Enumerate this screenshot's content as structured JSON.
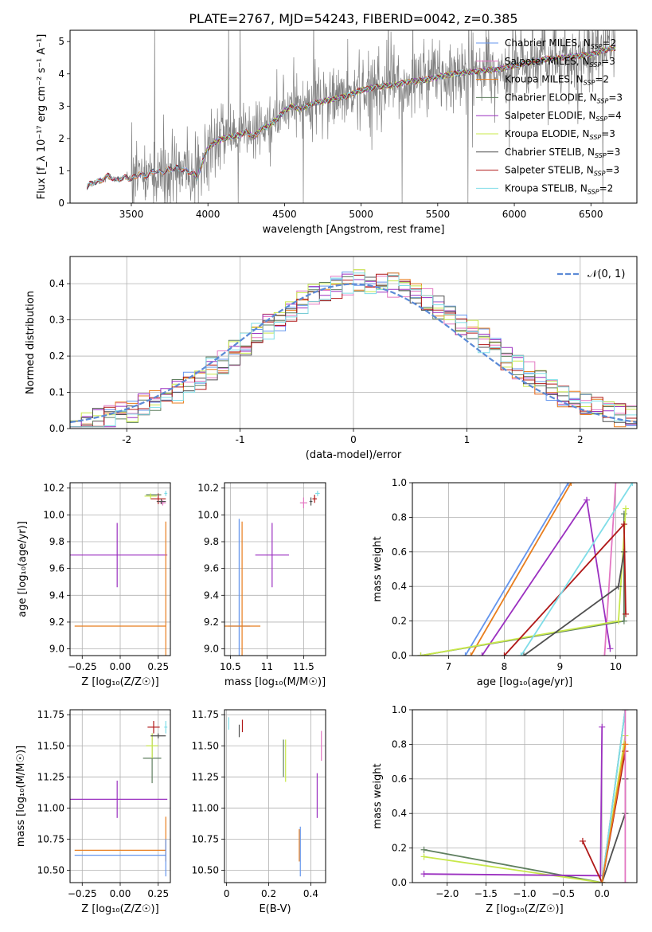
{
  "title": "PLATE=2767, MJD=54243, FIBERID=0042, z=0.385",
  "colors": {
    "Chabrier MILES": "#6495ed",
    "Salpeter MILES": "#e377c2",
    "Kroupa MILES": "#e87e1e",
    "Chabrier ELODIE": "#5f7f5f",
    "Salpeter ELODIE": "#9b30c0",
    "Kroupa ELODIE": "#c8e84a",
    "Chabrier STELIB": "#505050",
    "Salpeter STELIB": "#b01818",
    "Kroupa STELIB": "#7fdde8",
    "data": "#808080",
    "normal_curve": "#5b8ad6"
  },
  "chart_data": [
    {
      "id": "spectrum",
      "type": "line",
      "xlabel": "wavelength [Angstrom, rest frame]",
      "ylabel": "Flux [f_λ 10⁻¹⁷ erg cm⁻² s⁻¹ A⁻¹]",
      "xlim": [
        3100,
        6800
      ],
      "ylim": [
        0,
        5.35
      ],
      "xticks": [
        3500,
        4000,
        4500,
        5000,
        5500,
        6000,
        6500
      ],
      "yticks": [
        0,
        1,
        2,
        3,
        4,
        5
      ],
      "legend_position": "top-right",
      "legend": [
        {
          "name": "Chabrier MILES",
          "nssp": "2"
        },
        {
          "name": "Salpeter MILES",
          "nssp": "3"
        },
        {
          "name": "Kroupa MILES",
          "nssp": "2"
        },
        {
          "name": "Chabrier ELODIE",
          "nssp": "3"
        },
        {
          "name": "Salpeter ELODIE",
          "nssp": "4"
        },
        {
          "name": "Kroupa ELODIE",
          "nssp": "3"
        },
        {
          "name": "Chabrier STELIB",
          "nssp": "3"
        },
        {
          "name": "Salpeter STELIB",
          "nssp": "3"
        },
        {
          "name": "Kroupa STELIB",
          "nssp": "2"
        }
      ],
      "model_shape": {
        "x": [
          3210,
          3230,
          3300,
          3350,
          3400,
          3450,
          3500,
          3550,
          3600,
          3650,
          3700,
          3750,
          3800,
          3850,
          3900,
          3930,
          3960,
          4000,
          4050,
          4100,
          4150,
          4200,
          4250,
          4300,
          4350,
          4400,
          4450,
          4500,
          4550,
          4600,
          4700,
          4800,
          4900,
          5000,
          5100,
          5200,
          5300,
          5400,
          5500,
          5600,
          5700,
          5800,
          5900,
          6000,
          6100,
          6200,
          6300,
          6400,
          6500,
          6600,
          6650
        ],
        "y": [
          0.5,
          0.6,
          0.7,
          0.85,
          0.7,
          0.8,
          0.75,
          0.9,
          0.85,
          1.0,
          0.95,
          1.05,
          1.1,
          1.0,
          0.95,
          0.8,
          1.2,
          1.7,
          1.9,
          2.0,
          2.05,
          2.1,
          2.2,
          2.05,
          2.3,
          2.4,
          2.6,
          2.85,
          3.0,
          2.9,
          3.1,
          3.2,
          3.3,
          3.5,
          3.6,
          3.65,
          3.75,
          3.8,
          3.9,
          4.0,
          4.05,
          4.1,
          4.15,
          4.25,
          4.35,
          4.45,
          4.5,
          4.55,
          4.6,
          4.75,
          4.8
        ]
      }
    },
    {
      "id": "residuals",
      "type": "bar",
      "xlabel": "(data-model)/error",
      "ylabel": "Normed distribution",
      "xlim": [
        -2.5,
        2.5
      ],
      "ylim": [
        0,
        0.475
      ],
      "xticks": [
        -2,
        -1,
        0,
        1,
        2
      ],
      "yticks": [
        0.0,
        0.1,
        0.2,
        0.3,
        0.4
      ],
      "grid": true,
      "legend_position": "top-right",
      "legend_label": "𝒩(0, 1)",
      "bin_width": 0.1
    },
    {
      "id": "age_vs_Z",
      "type": "scatter",
      "xlabel": "Z [log₁₀(Z/Z☉)]",
      "ylabel": "age  [log₁₀(age/yr)]",
      "xlim": [
        -0.33,
        0.33
      ],
      "ylim": [
        8.95,
        10.24
      ],
      "xticks": [
        -0.25,
        0.0,
        0.25
      ],
      "xtick_labels": [
        "−0.25",
        "0.00",
        "0.25"
      ],
      "yticks": [
        9.0,
        9.2,
        9.4,
        9.6,
        9.8,
        10.0,
        10.2
      ],
      "grid": true,
      "points": [
        {
          "s": "Salpeter ELODIE",
          "x": -0.02,
          "y": 9.7,
          "xe": 0.33,
          "ye": 0.24
        },
        {
          "s": "Kroupa MILES",
          "x": 0.0,
          "y": 9.17,
          "xe": 0.3,
          "ye": 0.0
        },
        {
          "s": "Kroupa MILES",
          "x": 0.3,
          "y": 9.45,
          "xe": 0.0,
          "ye": 0.5
        },
        {
          "s": "Salpeter STELIB",
          "x": 0.25,
          "y": 10.12,
          "xe": 0.05,
          "ye": 0.04
        },
        {
          "s": "Chabrier ELODIE",
          "x": 0.22,
          "y": 10.15,
          "xe": 0.05,
          "ye": 0.0
        },
        {
          "s": "Kroupa ELODIE",
          "x": 0.2,
          "y": 10.14,
          "xe": 0.04,
          "ye": 0.02
        },
        {
          "s": "Salpeter MILES",
          "x": 0.28,
          "y": 10.09,
          "xe": 0.02,
          "ye": 0.02
        },
        {
          "s": "Kroupa STELIB",
          "x": 0.3,
          "y": 10.16,
          "xe": 0.01,
          "ye": 0.02
        },
        {
          "s": "Chabrier STELIB",
          "x": 0.27,
          "y": 10.1,
          "xe": 0.03,
          "ye": 0.02
        }
      ]
    },
    {
      "id": "age_vs_mass",
      "type": "scatter",
      "xlabel": "mass [log₁₀(M/M☉)]",
      "ylabel": "",
      "xlim": [
        10.42,
        11.8
      ],
      "ylim": [
        8.95,
        10.24
      ],
      "xticks": [
        10.5,
        11.0,
        11.5
      ],
      "yticks": [
        9.0,
        9.2,
        9.4,
        9.6,
        9.8,
        10.0,
        10.2
      ],
      "grid": true,
      "points": [
        {
          "s": "Salpeter ELODIE",
          "x": 11.07,
          "y": 9.7,
          "xe": 0.23,
          "ye": 0.24
        },
        {
          "s": "Chabrier MILES",
          "x": 10.62,
          "y": 9.17,
          "xe": 0.15,
          "ye": 0.8
        },
        {
          "s": "Kroupa MILES",
          "x": 10.66,
          "y": 9.17,
          "xe": 0.25,
          "ye": 0.78
        },
        {
          "s": "Salpeter STELIB",
          "x": 11.65,
          "y": 10.12,
          "xe": 0.03,
          "ye": 0.03
        },
        {
          "s": "Kroupa STELIB",
          "x": 11.69,
          "y": 10.16,
          "xe": 0.03,
          "ye": 0.02
        },
        {
          "s": "Salpeter MILES",
          "x": 11.5,
          "y": 10.09,
          "xe": 0.05,
          "ye": 0.04
        },
        {
          "s": "Chabrier STELIB",
          "x": 11.6,
          "y": 10.1,
          "xe": 0.02,
          "ye": 0.03
        }
      ]
    },
    {
      "id": "mass_weight_vs_age",
      "type": "line",
      "xlabel": "age  [log₁₀(age/yr)]",
      "ylabel": "mass weight",
      "xlim": [
        6.35,
        10.38
      ],
      "ylim": [
        0.0,
        1.0
      ],
      "xticks": [
        7,
        8,
        9,
        10
      ],
      "yticks": [
        0.0,
        0.2,
        0.4,
        0.6,
        0.8,
        1.0
      ],
      "grid": true,
      "series": [
        {
          "s": "Chabrier MILES",
          "x": [
            7.3,
            9.15
          ],
          "y": [
            0.0,
            1.0
          ]
        },
        {
          "s": "Kroupa MILES",
          "x": [
            7.4,
            9.2
          ],
          "y": [
            0.0,
            1.0
          ]
        },
        {
          "s": "Salpeter MILES",
          "x": [
            9.8,
            10.0
          ],
          "y": [
            0.0,
            1.0
          ]
        },
        {
          "s": "Chabrier ELODIE",
          "x": [
            6.5,
            10.15,
            10.15
          ],
          "y": [
            0.0,
            0.2,
            0.82
          ]
        },
        {
          "s": "Salpeter ELODIE",
          "x": [
            7.6,
            9.48,
            9.9
          ],
          "y": [
            0.0,
            0.9,
            0.04
          ]
        },
        {
          "s": "Kroupa ELODIE",
          "x": [
            6.5,
            10.05,
            10.18
          ],
          "y": [
            0.0,
            0.2,
            0.85
          ]
        },
        {
          "s": "Chabrier STELIB",
          "x": [
            8.35,
            10.05,
            10.15
          ],
          "y": [
            0.0,
            0.4,
            0.6
          ]
        },
        {
          "s": "Salpeter STELIB",
          "x": [
            8.0,
            10.15,
            10.18
          ],
          "y": [
            0.0,
            0.76,
            0.24
          ]
        },
        {
          "s": "Kroupa STELIB",
          "x": [
            8.3,
            10.3
          ],
          "y": [
            0.0,
            1.0
          ]
        }
      ]
    },
    {
      "id": "mass_vs_Z",
      "type": "scatter",
      "xlabel": "Z [log₁₀(Z/Z☉)]",
      "ylabel": "mass [log₁₀(M/M☉)]",
      "xlim": [
        -0.33,
        0.33
      ],
      "ylim": [
        10.4,
        11.79
      ],
      "xticks": [
        -0.25,
        0.0,
        0.25
      ],
      "xtick_labels": [
        "−0.25",
        "0.00",
        "0.25"
      ],
      "yticks": [
        10.5,
        10.75,
        11.0,
        11.25,
        11.5,
        11.75
      ],
      "grid": true,
      "points": [
        {
          "s": "Salpeter ELODIE",
          "x": -0.02,
          "y": 11.07,
          "xe": 0.33,
          "ye": 0.15
        },
        {
          "s": "Kroupa MILES",
          "x": 0.0,
          "y": 10.66,
          "xe": 0.3,
          "ye": 0.0
        },
        {
          "s": "Kroupa MILES",
          "x": 0.3,
          "y": 10.75,
          "xe": 0.0,
          "ye": 0.18
        },
        {
          "s": "Chabrier MILES",
          "x": 0.0,
          "y": 10.62,
          "xe": 0.3,
          "ye": 0.0
        },
        {
          "s": "Chabrier MILES",
          "x": 0.3,
          "y": 10.6,
          "xe": 0.0,
          "ye": 0.15
        },
        {
          "s": "Salpeter STELIB",
          "x": 0.22,
          "y": 11.65,
          "xe": 0.04,
          "ye": 0.05
        },
        {
          "s": "Chabrier ELODIE",
          "x": 0.21,
          "y": 11.4,
          "xe": 0.06,
          "ye": 0.2
        },
        {
          "s": "Kroupa ELODIE",
          "x": 0.21,
          "y": 11.5,
          "xe": 0.04,
          "ye": 0.1
        },
        {
          "s": "Chabrier STELIB",
          "x": 0.25,
          "y": 11.58,
          "xe": 0.05,
          "ye": 0.02
        },
        {
          "s": "Kroupa STELIB",
          "x": 0.3,
          "y": 11.65,
          "xe": 0.01,
          "ye": 0.05
        }
      ]
    },
    {
      "id": "mass_vs_EBV",
      "type": "scatter",
      "xlabel": "E(B-V)",
      "ylabel": "",
      "xlim": [
        -0.01,
        0.47
      ],
      "ylim": [
        10.4,
        11.79
      ],
      "xticks": [
        0.0,
        0.2,
        0.4
      ],
      "yticks": [
        10.5,
        10.75,
        11.0,
        11.25,
        11.5,
        11.75
      ],
      "grid": true,
      "points": [
        {
          "s": "Chabrier MILES",
          "x": 0.35,
          "y": 10.65,
          "xe": 0.0,
          "ye": 0.2
        },
        {
          "s": "Kroupa MILES",
          "x": 0.345,
          "y": 10.7,
          "xe": 0.0,
          "ye": 0.13
        },
        {
          "s": "Salpeter ELODIE",
          "x": 0.43,
          "y": 11.1,
          "xe": 0.0,
          "ye": 0.18
        },
        {
          "s": "Chabrier ELODIE",
          "x": 0.27,
          "y": 11.4,
          "xe": 0.0,
          "ye": 0.15
        },
        {
          "s": "Kroupa ELODIE",
          "x": 0.28,
          "y": 11.38,
          "xe": 0.0,
          "ye": 0.17
        },
        {
          "s": "Salpeter MILES",
          "x": 0.45,
          "y": 11.5,
          "xe": 0.0,
          "ye": 0.12
        },
        {
          "s": "Kroupa STELIB",
          "x": 0.01,
          "y": 11.68,
          "xe": 0.0,
          "ye": 0.05
        },
        {
          "s": "Chabrier STELIB",
          "x": 0.06,
          "y": 11.62,
          "xe": 0.0,
          "ye": 0.05
        },
        {
          "s": "Salpeter STELIB",
          "x": 0.075,
          "y": 11.66,
          "xe": 0.0,
          "ye": 0.05
        }
      ]
    },
    {
      "id": "mass_weight_vs_Z",
      "type": "line",
      "xlabel": "Z [log₁₀(Z/Z☉)]",
      "ylabel": "mass weight",
      "xlim": [
        -2.45,
        0.45
      ],
      "ylim": [
        0.0,
        1.0
      ],
      "xticks": [
        -2.0,
        -1.5,
        -1.0,
        -0.5,
        0.0
      ],
      "xtick_labels": [
        "−2.0",
        "−1.5",
        "−1.0",
        "−0.5",
        "0.0"
      ],
      "yticks": [
        0.0,
        0.2,
        0.4,
        0.6,
        0.8,
        1.0
      ],
      "grid": true,
      "series": [
        {
          "s": "Chabrier ELODIE",
          "x": [
            -2.3,
            0.0,
            0.3
          ],
          "y": [
            0.19,
            0.0,
            1.0
          ]
        },
        {
          "s": "Kroupa ELODIE",
          "x": [
            -2.3,
            0.0,
            0.3
          ],
          "y": [
            0.15,
            0.0,
            0.85
          ]
        },
        {
          "s": "Salpeter ELODIE",
          "x": [
            -2.3,
            -0.02,
            0.0
          ],
          "y": [
            0.05,
            0.04,
            0.9
          ]
        },
        {
          "s": "Salpeter STELIB",
          "x": [
            -0.25,
            0.0,
            0.3
          ],
          "y": [
            0.24,
            0.0,
            0.76
          ]
        },
        {
          "s": "Chabrier STELIB",
          "x": [
            0.0,
            0.3,
            0.3
          ],
          "y": [
            0.0,
            0.4,
            0.6
          ]
        },
        {
          "s": "Kroupa STELIB",
          "x": [
            0.0,
            0.3
          ],
          "y": [
            0.0,
            1.0
          ]
        },
        {
          "s": "Salpeter MILES",
          "x": [
            0.3,
            0.3
          ],
          "y": [
            0.0,
            1.0
          ]
        },
        {
          "s": "Kroupa MILES",
          "x": [
            0.0,
            0.3
          ],
          "y": [
            0.0,
            0.8
          ]
        }
      ]
    }
  ]
}
